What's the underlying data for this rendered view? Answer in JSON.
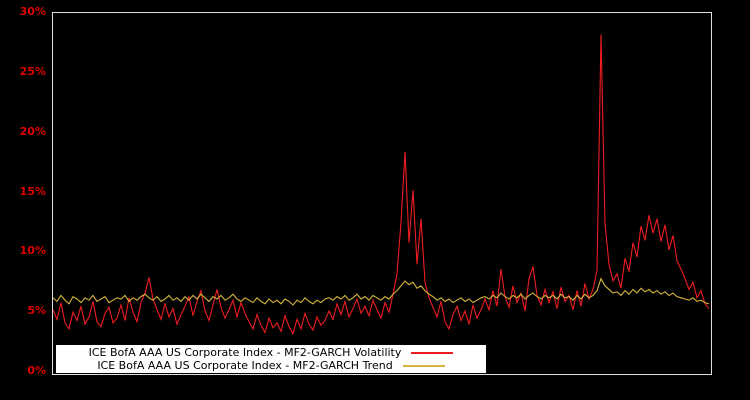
{
  "chart_data": {
    "type": "line",
    "title": "",
    "xlabel": "",
    "ylabel": "",
    "ylim": [
      0,
      30
    ],
    "grid": false,
    "background_color": "#000000",
    "frame_color": "#e0e0e0",
    "tick_label_color": "#dd0000",
    "legend_position": "bottom-center",
    "legend_background": "#ffffff",
    "yticks": [
      {
        "value": 0,
        "label": "0%"
      },
      {
        "value": 5,
        "label": "5%"
      },
      {
        "value": 10,
        "label": "10%"
      },
      {
        "value": 15,
        "label": "15%"
      },
      {
        "value": 20,
        "label": "20%"
      },
      {
        "value": 25,
        "label": "25%"
      },
      {
        "value": 30,
        "label": "30%"
      }
    ],
    "series": [
      {
        "name": "ICE BofA AAA US Corporate Index - MF2-GARCH Volatility",
        "color": "#ee1c23",
        "values": [
          5.2,
          4.4,
          5.8,
          4.1,
          3.6,
          5.0,
          4.3,
          5.5,
          4.0,
          4.6,
          5.9,
          4.2,
          3.8,
          4.9,
          5.4,
          4.1,
          4.5,
          5.6,
          4.3,
          6.2,
          5.0,
          4.2,
          5.8,
          6.6,
          7.9,
          6.1,
          5.2,
          4.4,
          5.7,
          4.6,
          5.3,
          4.0,
          4.8,
          5.5,
          6.3,
          4.7,
          5.9,
          6.8,
          5.1,
          4.3,
          5.6,
          6.9,
          5.4,
          4.5,
          5.2,
          6.0,
          4.6,
          5.8,
          4.9,
          4.2,
          3.6,
          4.8,
          3.9,
          3.3,
          4.5,
          3.7,
          4.1,
          3.4,
          4.7,
          3.8,
          3.2,
          4.4,
          3.6,
          4.9,
          4.0,
          3.5,
          4.6,
          3.9,
          4.3,
          5.1,
          4.4,
          5.7,
          4.8,
          5.9,
          4.6,
          5.3,
          6.1,
          4.9,
          5.5,
          4.7,
          6.0,
          5.2,
          4.5,
          5.8,
          5.0,
          6.5,
          8.2,
          12.5,
          18.4,
          10.8,
          15.2,
          9.0,
          12.8,
          7.5,
          6.2,
          5.4,
          4.6,
          5.9,
          4.2,
          3.6,
          4.8,
          5.5,
          4.3,
          5.1,
          4.0,
          5.6,
          4.5,
          5.2,
          6.1,
          5.2,
          6.8,
          5.5,
          8.6,
          6.3,
          5.4,
          7.2,
          5.8,
          6.6,
          5.1,
          7.8,
          8.8,
          6.4,
          5.6,
          6.9,
          5.8,
          6.7,
          5.3,
          7.1,
          5.9,
          6.4,
          5.2,
          6.8,
          5.5,
          7.4,
          6.1,
          6.9,
          8.5,
          28.2,
          12.4,
          9.0,
          7.6,
          8.2,
          7.0,
          9.5,
          8.4,
          10.8,
          9.6,
          12.2,
          11.0,
          13.1,
          11.6,
          12.8,
          10.9,
          12.3,
          10.2,
          11.4,
          9.3,
          8.6,
          7.8,
          6.9,
          7.5,
          6.2,
          6.8,
          5.7,
          5.3
        ]
      },
      {
        "name": "ICE BofA AAA US Corporate Index - MF2-GARCH Trend",
        "color": "#d4b43c",
        "values": [
          6.2,
          5.9,
          6.4,
          6.0,
          5.7,
          6.3,
          6.1,
          5.8,
          6.2,
          6.0,
          6.4,
          5.9,
          6.1,
          6.3,
          5.8,
          6.0,
          6.2,
          6.1,
          6.4,
          5.9,
          6.2,
          6.0,
          6.3,
          6.5,
          6.2,
          6.0,
          6.3,
          5.9,
          6.1,
          6.4,
          6.0,
          6.2,
          5.9,
          6.3,
          6.0,
          6.4,
          6.1,
          6.5,
          6.2,
          5.9,
          6.3,
          6.1,
          6.4,
          6.0,
          6.2,
          6.5,
          6.1,
          5.9,
          6.2,
          6.0,
          5.8,
          6.2,
          5.9,
          5.7,
          6.1,
          5.8,
          6.0,
          5.7,
          6.1,
          5.9,
          5.6,
          6.0,
          5.8,
          6.2,
          5.9,
          5.7,
          6.0,
          5.8,
          6.1,
          6.2,
          6.0,
          6.3,
          6.1,
          6.4,
          6.0,
          6.2,
          6.5,
          6.1,
          6.3,
          6.0,
          6.4,
          6.2,
          6.0,
          6.3,
          6.1,
          6.5,
          6.8,
          7.2,
          7.6,
          7.3,
          7.5,
          7.0,
          7.2,
          6.8,
          6.5,
          6.3,
          6.0,
          6.2,
          5.9,
          6.1,
          5.8,
          6.0,
          6.2,
          5.9,
          6.1,
          5.8,
          6.0,
          6.2,
          6.3,
          6.1,
          6.4,
          6.2,
          6.6,
          6.3,
          6.1,
          6.4,
          6.2,
          6.5,
          6.1,
          6.4,
          6.6,
          6.3,
          6.1,
          6.4,
          6.2,
          6.4,
          6.1,
          6.5,
          6.2,
          6.3,
          6.0,
          6.4,
          6.1,
          6.5,
          6.2,
          6.4,
          6.8,
          7.8,
          7.2,
          6.9,
          6.6,
          6.7,
          6.4,
          6.8,
          6.5,
          6.9,
          6.6,
          7.0,
          6.7,
          6.9,
          6.6,
          6.8,
          6.5,
          6.7,
          6.4,
          6.6,
          6.3,
          6.2,
          6.1,
          6.0,
          6.2,
          5.9,
          6.0,
          5.8,
          5.7
        ]
      }
    ]
  }
}
